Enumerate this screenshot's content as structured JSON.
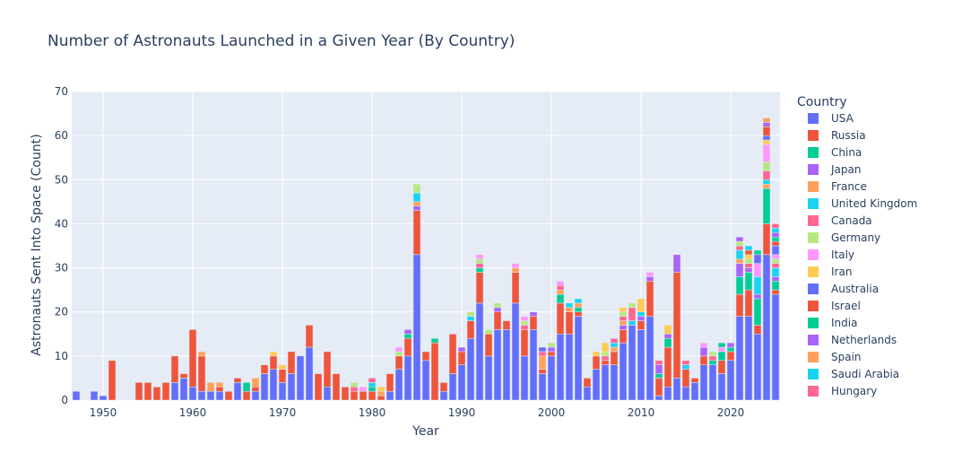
{
  "chart_data": {
    "type": "bar",
    "barmode": "stack",
    "title": "Number of Astronauts Launched in a Given Year (By Country)",
    "xlabel": "Year",
    "ylabel": "Astronauts Sent Into Space (Count)",
    "xlim": [
      1946.5,
      2025.5
    ],
    "ylim": [
      0,
      70
    ],
    "xticks": [
      1950,
      1960,
      1970,
      1980,
      1990,
      2000,
      2010,
      2020
    ],
    "yticks": [
      0,
      10,
      20,
      30,
      40,
      50,
      60,
      70
    ],
    "grid": true,
    "legend_title": "Country",
    "legend_position": "right",
    "background": "#e5ecf6",
    "series": [
      {
        "name": "USA",
        "color": "#636efa",
        "values": {
          "1947": 2,
          "1949": 2,
          "1950": 1,
          "1958": 4,
          "1959": 5,
          "1960": 3,
          "1961": 2,
          "1962": 2,
          "1963": 2,
          "1965": 4,
          "1967": 2,
          "1968": 6,
          "1969": 7,
          "1970": 4,
          "1971": 6,
          "1972": 10,
          "1973": 12,
          "1975": 3,
          "1982": 2,
          "1983": 7,
          "1984": 10,
          "1985": 33,
          "1986": 9,
          "1988": 2,
          "1989": 6,
          "1990": 8,
          "1991": 14,
          "1992": 22,
          "1993": 10,
          "1994": 16,
          "1995": 16,
          "1996": 22,
          "1997": 10,
          "1998": 16,
          "1999": 6,
          "2000": 10,
          "2001": 15,
          "2002": 15,
          "2003": 19,
          "2004": 3,
          "2005": 7,
          "2006": 8,
          "2007": 8,
          "2008": 13,
          "2009": 17,
          "2010": 16,
          "2011": 19,
          "2012": 1,
          "2013": 3,
          "2014": 5,
          "2015": 3,
          "2016": 4,
          "2017": 8,
          "2018": 8,
          "2019": 6,
          "2020": 9,
          "2021": 19,
          "2022": 19,
          "2023": 15,
          "2024": 33,
          "2025": 24
        }
      },
      {
        "name": "Russia",
        "color": "#EF553B",
        "values": {
          "1951": 9,
          "1954": 4,
          "1955": 4,
          "1956": 3,
          "1957": 4,
          "1958": 6,
          "1959": 1,
          "1960": 13,
          "1961": 8,
          "1963": 1,
          "1964": 2,
          "1965": 1,
          "1966": 2,
          "1967": 1,
          "1968": 2,
          "1969": 3,
          "1970": 3,
          "1971": 5,
          "1973": 5,
          "1974": 6,
          "1975": 8,
          "1976": 6,
          "1977": 3,
          "1978": 2,
          "1979": 2,
          "1980": 2,
          "1981": 1,
          "1982": 4,
          "1983": 3,
          "1984": 4,
          "1985": 10,
          "1986": 2,
          "1987": 13,
          "1988": 2,
          "1989": 9,
          "1990": 3,
          "1991": 4,
          "1992": 7,
          "1993": 5,
          "1994": 4,
          "1995": 2,
          "1996": 7,
          "1997": 6,
          "1998": 3,
          "1999": 1,
          "2000": 1,
          "2001": 7,
          "2002": 5,
          "2003": 1,
          "2004": 2,
          "2005": 3,
          "2006": 1,
          "2007": 3,
          "2008": 3,
          "2010": 2,
          "2011": 8,
          "2012": 4,
          "2013": 9,
          "2014": 24,
          "2015": 4,
          "2016": 1,
          "2017": 2,
          "2019": 3,
          "2020": 2,
          "2021": 5,
          "2022": 6,
          "2023": 2,
          "2024": 7,
          "2025": 1
        }
      },
      {
        "name": "China",
        "color": "#00cc96",
        "values": {
          "1966": 2,
          "1980": 1,
          "1984": 1,
          "1987": 1,
          "1992": 1,
          "2001": 2,
          "2003": 1,
          "2012": 1,
          "2013": 2,
          "2018": 1,
          "2019": 2,
          "2020": 1,
          "2021": 4,
          "2022": 4,
          "2023": 6,
          "2024": 8,
          "2025": 2
        }
      },
      {
        "name": "Japan",
        "color": "#ab63fa",
        "values": {
          "1984": 1,
          "1985": 1,
          "1990": 1,
          "1994": 1,
          "1998": 1,
          "2000": 1,
          "2008": 1,
          "2010": 1,
          "2011": 1,
          "2012": 2,
          "2013": 1,
          "2014": 4,
          "2017": 2,
          "2020": 1,
          "2021": 3,
          "2022": 1,
          "2023": 1,
          "2025": 1
        }
      },
      {
        "name": "France",
        "color": "#FFA15A",
        "values": {
          "1961": 1,
          "1962": 2,
          "1963": 1,
          "1967": 2,
          "1981": 1,
          "1985": 1,
          "1996": 1,
          "1999": 3,
          "2001": 1,
          "2002": 1,
          "2003": 1,
          "2007": 1,
          "2008": 1,
          "2021": 1,
          "2024": 1
        }
      },
      {
        "name": "United Kingdom",
        "color": "#19d3f3",
        "values": {
          "1980": 1,
          "1985": 2,
          "1991": 1,
          "2002": 1,
          "2003": 1,
          "2007": 1,
          "2009": 1,
          "2010": 1,
          "2015": 1,
          "2021": 2,
          "2023": 4,
          "2024": 1,
          "2025": 2
        }
      },
      {
        "name": "Canada",
        "color": "#FF6692",
        "values": {
          "1978": 1,
          "1980": 1,
          "1992": 1,
          "1997": 1,
          "1999": 1,
          "2001": 1,
          "2006": 1,
          "2007": 1,
          "2008": 1,
          "2009": 3,
          "2012": 1,
          "2015": 1,
          "2018": 1,
          "2021": 1,
          "2022": 1,
          "2024": 2,
          "2025": 1
        }
      },
      {
        "name": "Germany",
        "color": "#B6E880",
        "values": {
          "1978": 1,
          "1983": 1,
          "1985": 2,
          "1991": 1,
          "1992": 1,
          "1993": 1,
          "1994": 1,
          "1997": 1,
          "2000": 1,
          "2006": 1,
          "2008": 1,
          "2009": 1,
          "2018": 1,
          "2021": 1,
          "2022": 1,
          "2024": 2,
          "2025": 1
        }
      },
      {
        "name": "Italy",
        "color": "#FF97FF",
        "values": {
          "1979": 1,
          "1983": 1,
          "1992": 1,
          "1996": 1,
          "1997": 1,
          "2001": 1,
          "2011": 1,
          "2017": 1,
          "2019": 1,
          "2023": 3,
          "2024": 4,
          "2025": 1
        }
      },
      {
        "name": "Iran",
        "color": "#FECB52",
        "values": {
          "1969": 1,
          "1970": 1,
          "1981": 1,
          "2005": 1,
          "2006": 2,
          "2008": 1,
          "2010": 3,
          "2013": 2,
          "2022": 1,
          "2024": 1
        }
      },
      {
        "name": "Australia",
        "color": "#636efa",
        "values": {
          "1999": 1,
          "2023": 2,
          "2024": 1,
          "2025": 2
        }
      },
      {
        "name": "Israel",
        "color": "#EF553B",
        "values": {
          "2022": 1,
          "2024": 2,
          "2025": 1
        }
      },
      {
        "name": "India",
        "color": "#00cc96",
        "values": {
          "2019": 1,
          "2023": 1,
          "2025": 1
        }
      },
      {
        "name": "Netherlands",
        "color": "#ab63fa",
        "values": {
          "2021": 1,
          "2024": 1,
          "2025": 1
        }
      },
      {
        "name": "Spain",
        "color": "#FFA15A",
        "values": {
          "2024": 1
        }
      },
      {
        "name": "Saudi Arabia",
        "color": "#19d3f3",
        "values": {
          "2022": 1,
          "2025": 1
        }
      },
      {
        "name": "Hungary",
        "color": "#FF6692",
        "values": {
          "2025": 1
        }
      }
    ]
  }
}
